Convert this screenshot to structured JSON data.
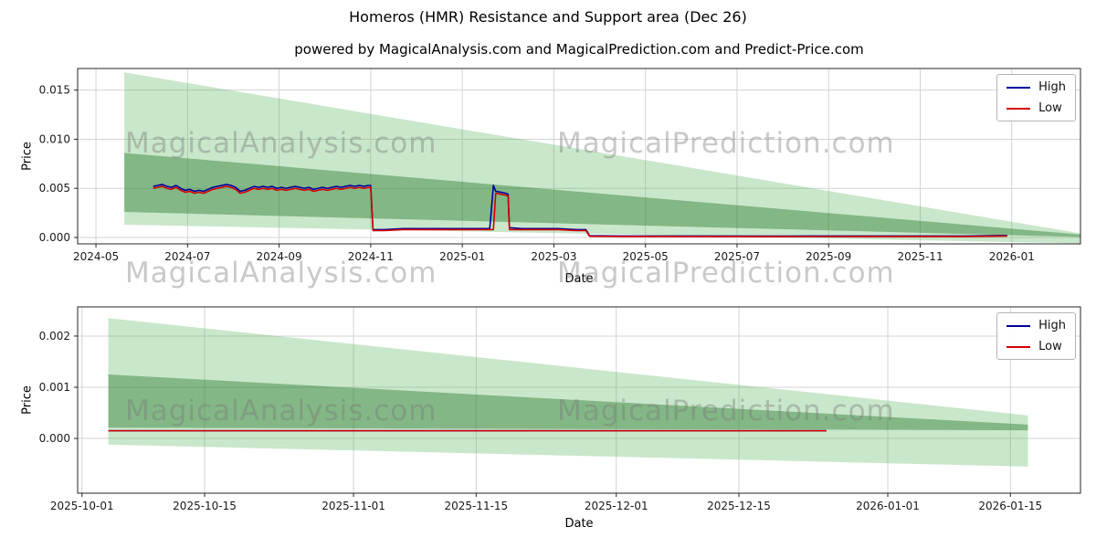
{
  "title": "Homeros (HMR) Resistance and Support area (Dec 26)",
  "subtitle": "powered by MagicalAnalysis.com and MagicalPrediction.com and Predict-Price.com",
  "watermarks": {
    "left": "MagicalAnalysis.com",
    "right": "MagicalPrediction.com"
  },
  "legend": {
    "high_label": "High",
    "low_label": "Low"
  },
  "colors": {
    "high": "#00009c",
    "low": "#d40000",
    "band_light": "#4caf50",
    "band_dark": "#2e7d32",
    "grid": "#d3d3d3",
    "spine": "#262626",
    "watermark": "rgba(120,120,120,0.40)"
  },
  "chart_data": [
    {
      "type": "line",
      "title": "",
      "xlabel": "Date",
      "ylabel": "Price",
      "x_unit": "months since 2024-05",
      "xlim": [
        -0.4,
        21.5
      ],
      "ylim": [
        -0.00065,
        0.0172
      ],
      "grid": true,
      "legend_position": "upper right",
      "x_ticks": [
        {
          "v": 0,
          "label": "2024-05"
        },
        {
          "v": 2,
          "label": "2024-07"
        },
        {
          "v": 4,
          "label": "2024-09"
        },
        {
          "v": 6,
          "label": "2024-11"
        },
        {
          "v": 8,
          "label": "2025-01"
        },
        {
          "v": 10,
          "label": "2025-03"
        },
        {
          "v": 12,
          "label": "2025-05"
        },
        {
          "v": 14,
          "label": "2025-07"
        },
        {
          "v": 16,
          "label": "2025-09"
        },
        {
          "v": 18,
          "label": "2025-11"
        },
        {
          "v": 20,
          "label": "2026-01"
        }
      ],
      "y_ticks": [
        {
          "v": 0,
          "label": "0.000"
        },
        {
          "v": 0.005,
          "label": "0.005"
        },
        {
          "v": 0.01,
          "label": "0.010"
        },
        {
          "v": 0.015,
          "label": "0.015"
        }
      ],
      "bands": [
        {
          "name": "resistance-support-outer",
          "color": "band_light",
          "opacity": 0.3,
          "points": [
            [
              0.62,
              0.0168
            ],
            [
              21.5,
              0.00042
            ],
            [
              21.5,
              -0.0006
            ],
            [
              0.62,
              0.0013
            ]
          ]
        },
        {
          "name": "resistance-support-inner",
          "color": "band_dark",
          "opacity": 0.45,
          "points": [
            [
              0.62,
              0.0086
            ],
            [
              21.5,
              0.0003
            ],
            [
              21.5,
              5e-05
            ],
            [
              0.62,
              0.0026
            ]
          ]
        }
      ],
      "x": [
        1.25,
        1.35,
        1.45,
        1.55,
        1.65,
        1.75,
        1.85,
        1.95,
        2.05,
        2.15,
        2.25,
        2.35,
        2.45,
        2.55,
        2.65,
        2.75,
        2.85,
        2.95,
        3.05,
        3.15,
        3.25,
        3.35,
        3.45,
        3.55,
        3.65,
        3.75,
        3.85,
        3.95,
        4.05,
        4.15,
        4.25,
        4.35,
        4.45,
        4.55,
        4.65,
        4.75,
        4.85,
        4.95,
        5.05,
        5.15,
        5.25,
        5.35,
        5.45,
        5.55,
        5.65,
        5.75,
        5.85,
        5.95,
        6.0,
        6.05,
        6.3,
        6.7,
        7.1,
        7.5,
        7.9,
        8.3,
        8.6,
        8.68,
        8.73,
        8.85,
        8.95,
        9.0,
        9.03,
        9.3,
        9.7,
        10.1,
        10.5,
        10.7,
        10.78,
        11.5,
        13,
        15,
        17,
        19,
        19.9
      ],
      "series": [
        {
          "name": "High",
          "color": "high",
          "y": [
            0.0052,
            0.0053,
            0.0054,
            0.0052,
            0.0051,
            0.0053,
            0.005,
            0.0048,
            0.0049,
            0.0047,
            0.0048,
            0.0047,
            0.0049,
            0.0051,
            0.0052,
            0.0053,
            0.0054,
            0.0053,
            0.0051,
            0.0047,
            0.0048,
            0.005,
            0.0052,
            0.0051,
            0.0052,
            0.0051,
            0.0052,
            0.005,
            0.0051,
            0.005,
            0.0051,
            0.0052,
            0.0051,
            0.005,
            0.0051,
            0.0049,
            0.005,
            0.0051,
            0.005,
            0.0051,
            0.0052,
            0.0051,
            0.0052,
            0.0053,
            0.0052,
            0.0053,
            0.0052,
            0.0053,
            0.0053,
            0.0008,
            0.0008,
            0.0009,
            0.0009,
            0.0009,
            0.0009,
            0.0009,
            0.0009,
            0.0053,
            0.0047,
            0.0046,
            0.0045,
            0.0044,
            0.001,
            0.0009,
            0.0009,
            0.0009,
            0.0008,
            0.0008,
            0.00018,
            0.00015,
            0.00015,
            0.00014,
            0.00015,
            0.00015,
            0.0002
          ]
        },
        {
          "name": "Low",
          "color": "low",
          "y": [
            0.005,
            0.0051,
            0.0052,
            0.005,
            0.0049,
            0.0051,
            0.0048,
            0.0046,
            0.0047,
            0.0045,
            0.0046,
            0.0045,
            0.0047,
            0.0049,
            0.005,
            0.0051,
            0.0052,
            0.0051,
            0.0049,
            0.0045,
            0.0046,
            0.0048,
            0.005,
            0.0049,
            0.005,
            0.0049,
            0.005,
            0.0048,
            0.0049,
            0.0048,
            0.0049,
            0.005,
            0.0049,
            0.0048,
            0.0049,
            0.0047,
            0.0048,
            0.0049,
            0.0048,
            0.0049,
            0.005,
            0.0049,
            0.005,
            0.0051,
            0.005,
            0.0051,
            0.005,
            0.0051,
            0.0051,
            0.0007,
            0.0007,
            0.0008,
            0.0008,
            0.0008,
            0.0008,
            0.0008,
            0.0008,
            0.0008,
            0.0045,
            0.0044,
            0.0043,
            0.0042,
            0.0008,
            0.0008,
            0.0008,
            0.0008,
            0.0007,
            0.0007,
            0.00012,
            0.0001,
            0.0001,
            9e-05,
            0.0001,
            0.0001,
            0.00015
          ]
        }
      ]
    },
    {
      "type": "line",
      "title": "",
      "xlabel": "Date",
      "ylabel": "Price",
      "x_unit": "days since 2025-10-01",
      "xlim": [
        -0.5,
        114
      ],
      "ylim": [
        -0.00107,
        0.00257
      ],
      "grid": true,
      "legend_position": "upper right",
      "x_ticks": [
        {
          "v": 0,
          "label": "2025-10-01"
        },
        {
          "v": 14,
          "label": "2025-10-15"
        },
        {
          "v": 31,
          "label": "2025-11-01"
        },
        {
          "v": 45,
          "label": "2025-11-15"
        },
        {
          "v": 61,
          "label": "2025-12-01"
        },
        {
          "v": 75,
          "label": "2025-12-15"
        },
        {
          "v": 92,
          "label": "2026-01-01"
        },
        {
          "v": 106,
          "label": "2026-01-15"
        }
      ],
      "y_ticks": [
        {
          "v": 0,
          "label": "0.000"
        },
        {
          "v": 0.001,
          "label": "0.001"
        },
        {
          "v": 0.002,
          "label": "0.002"
        }
      ],
      "bands": [
        {
          "name": "resistance-support-outer",
          "color": "band_light",
          "opacity": 0.3,
          "points": [
            [
              3,
              0.00235
            ],
            [
              108,
              0.00045
            ],
            [
              108,
              -0.00055
            ],
            [
              3,
              -0.00012
            ]
          ]
        },
        {
          "name": "resistance-support-inner",
          "color": "band_dark",
          "opacity": 0.45,
          "points": [
            [
              3,
              0.00125
            ],
            [
              108,
              0.00027
            ],
            [
              108,
              0.00016
            ],
            [
              3,
              0.00021
            ]
          ]
        }
      ],
      "x": [
        3,
        85
      ],
      "series": [
        {
          "name": "High",
          "color": "high",
          "y": [
            0.00015,
            0.00015
          ]
        },
        {
          "name": "Low",
          "color": "low",
          "y": [
            0.00015,
            0.00015
          ]
        }
      ]
    }
  ]
}
